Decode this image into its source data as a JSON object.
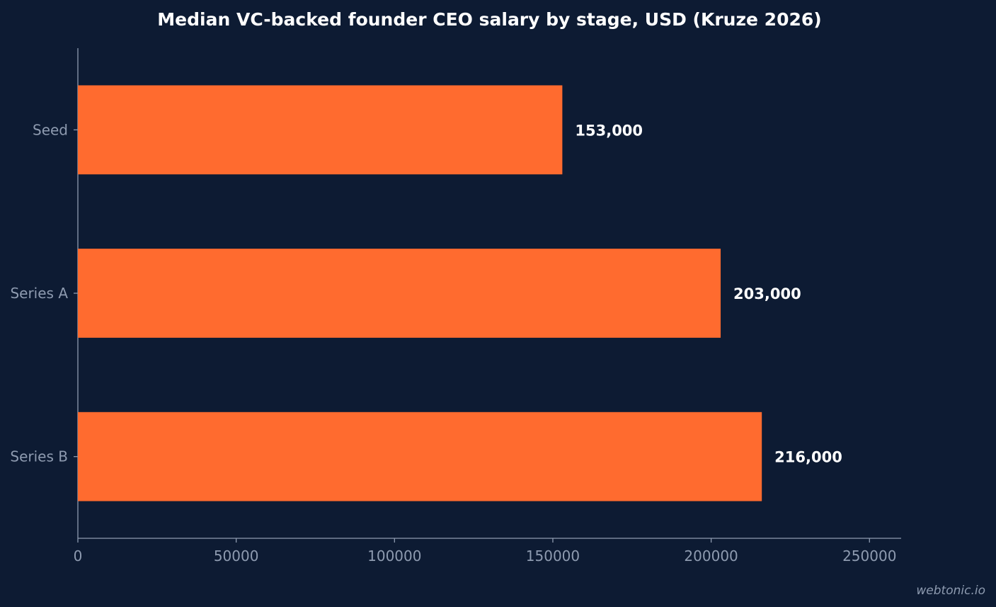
{
  "chart_data": {
    "type": "bar",
    "orientation": "horizontal",
    "title": "Median VC-backed founder CEO salary by stage, USD (Kruze 2026)",
    "categories": [
      "Seed",
      "Series A",
      "Series B"
    ],
    "values": [
      153000,
      203000,
      216000
    ],
    "data_labels": [
      "153,000",
      "203,000",
      "216,000"
    ],
    "x_ticks": [
      0,
      50000,
      100000,
      150000,
      200000,
      250000
    ],
    "x_tick_labels": [
      "0",
      "50000",
      "100000",
      "150000",
      "200000",
      "250000"
    ],
    "xlim": [
      0,
      260000
    ],
    "xlabel": "",
    "ylabel": "",
    "grid": false,
    "legend": "none",
    "bar_color": "#ff6b2f",
    "background_color": "#0d1b33",
    "axis_color": "#8e9bb0",
    "label_color": "#ffffff"
  },
  "watermark": "webtonic.io"
}
